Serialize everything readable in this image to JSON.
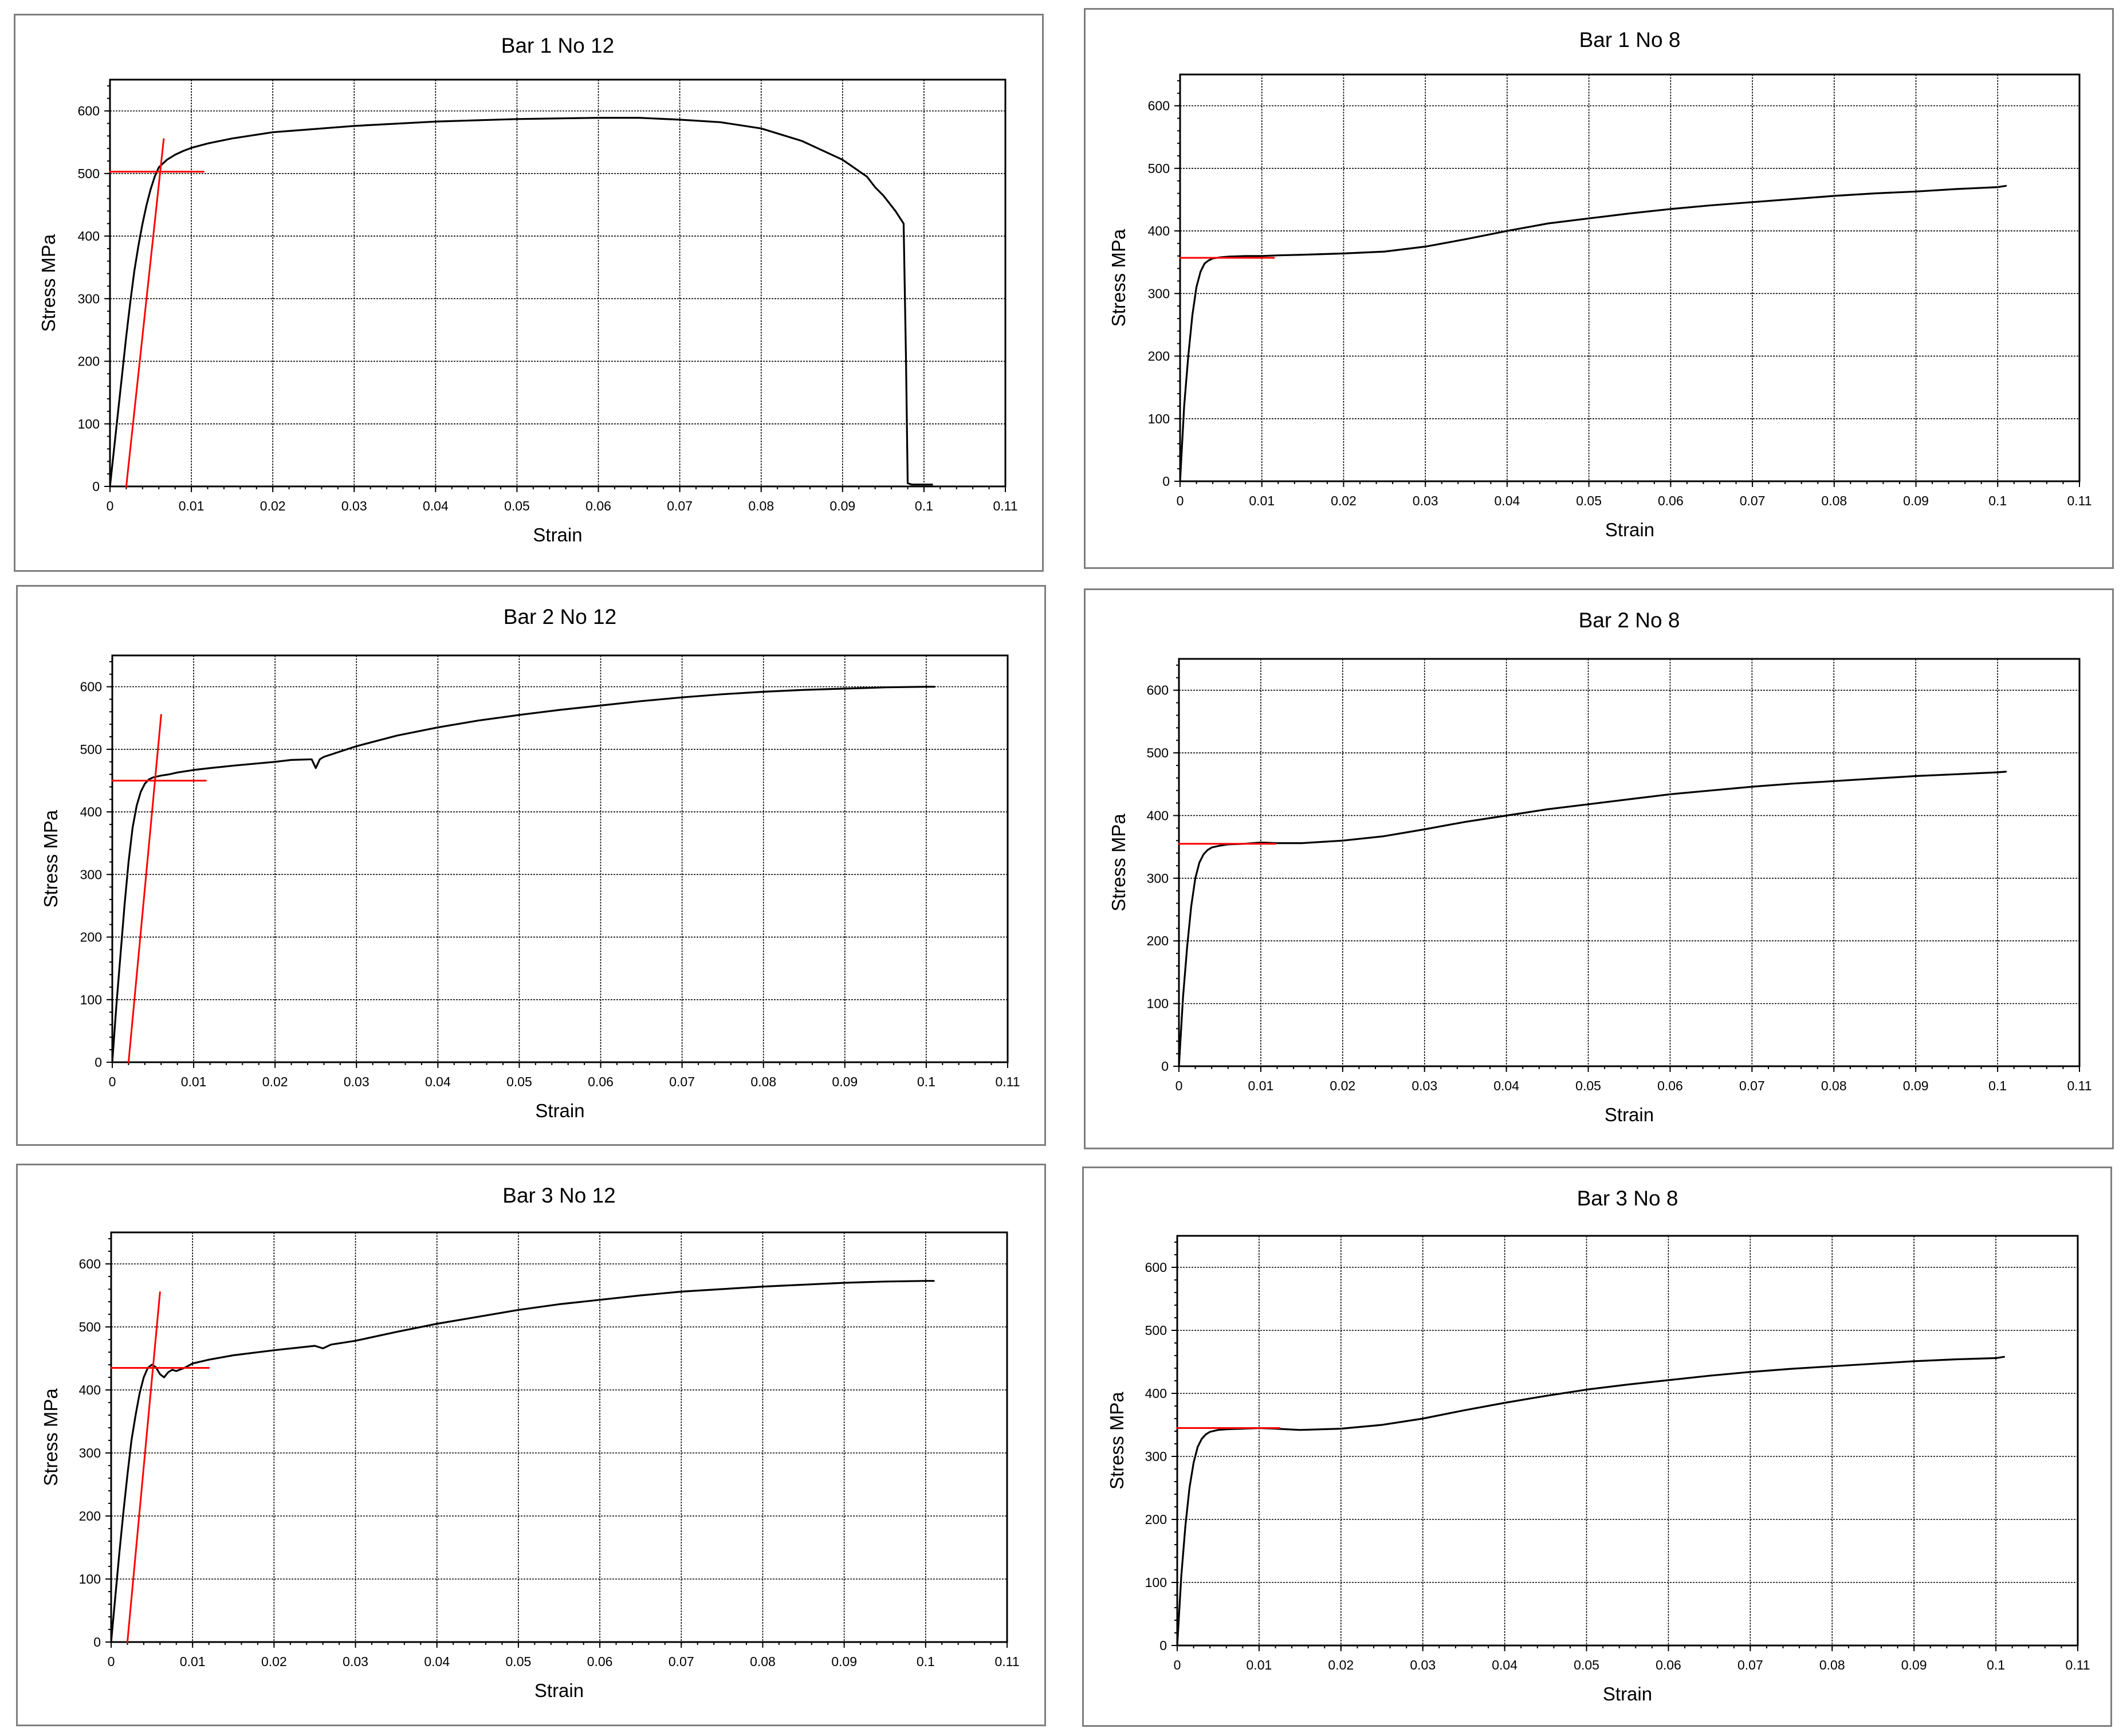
{
  "chart_data": [
    {
      "type": "line",
      "title": "Bar 1 No 12",
      "xlabel": "Strain",
      "ylabel": "Stress MPa",
      "xlim": [
        0,
        0.11
      ],
      "ylim": [
        0,
        650
      ],
      "xticks": [
        "0",
        "0.01",
        "0.02",
        "0.03",
        "0.04",
        "0.05",
        "0.06",
        "0.07",
        "0.08",
        "0.09",
        "0.1",
        "0.11"
      ],
      "yticks": [
        "0",
        "100",
        "200",
        "300",
        "400",
        "500",
        "600"
      ],
      "grid": true,
      "series": [
        {
          "color": "#000000",
          "x": [
            0,
            0.0005,
            0.001,
            0.0015,
            0.002,
            0.0025,
            0.003,
            0.0035,
            0.004,
            0.0045,
            0.005,
            0.0055,
            0.006,
            0.007,
            0.008,
            0.009,
            0.01,
            0.012,
            0.015,
            0.02,
            0.03,
            0.04,
            0.05,
            0.06,
            0.065,
            0.07,
            0.075,
            0.08,
            0.085,
            0.09,
            0.093,
            0.094,
            0.095,
            0.0965,
            0.0975,
            0.0978,
            0.098,
            0.0985,
            0.101
          ],
          "y": [
            0,
            60,
            120,
            180,
            240,
            295,
            345,
            385,
            420,
            450,
            475,
            495,
            510,
            522,
            530,
            536,
            541,
            548,
            556,
            566,
            576,
            583,
            587,
            589,
            589,
            586,
            582,
            572,
            552,
            522,
            495,
            478,
            465,
            440,
            420,
            200,
            5,
            3,
            3
          ]
        },
        {
          "color": "#ff0000",
          "x": [
            0.002,
            0.0066
          ],
          "y": [
            0,
            555
          ]
        },
        {
          "color": "#ff0000",
          "x": [
            0,
            0.0115
          ],
          "y": [
            503,
            503
          ]
        }
      ]
    },
    {
      "type": "line",
      "title": "Bar 1 No 8",
      "xlabel": "Strain",
      "ylabel": "Stress MPa",
      "xlim": [
        0,
        0.11
      ],
      "ylim": [
        0,
        650
      ],
      "xticks": [
        "0",
        "0.01",
        "0.02",
        "0.03",
        "0.04",
        "0.05",
        "0.06",
        "0.07",
        "0.08",
        "0.09",
        "0.1",
        "0.11"
      ],
      "yticks": [
        "0",
        "100",
        "200",
        "300",
        "400",
        "500",
        "600"
      ],
      "grid": true,
      "series": [
        {
          "color": "#000000",
          "x": [
            0,
            0.0005,
            0.001,
            0.0015,
            0.002,
            0.0025,
            0.003,
            0.0035,
            0.004,
            0.005,
            0.006,
            0.008,
            0.01,
            0.012,
            0.015,
            0.02,
            0.025,
            0.03,
            0.035,
            0.04,
            0.045,
            0.05,
            0.055,
            0.06,
            0.065,
            0.07,
            0.075,
            0.08,
            0.085,
            0.09,
            0.095,
            0.1,
            0.101
          ],
          "y": [
            0,
            120,
            200,
            265,
            310,
            335,
            348,
            353,
            356,
            358,
            359,
            360,
            360,
            361,
            362,
            364,
            367,
            375,
            387,
            400,
            412,
            420,
            428,
            435,
            441,
            446,
            451,
            456,
            460,
            463,
            467,
            470,
            472
          ]
        },
        {
          "color": "#ff0000",
          "x": [
            0,
            0.0115
          ],
          "y": [
            357,
            357
          ]
        }
      ]
    },
    {
      "type": "line",
      "title": "Bar 2 No 12",
      "xlabel": "Strain",
      "ylabel": "Stress MPa",
      "xlim": [
        0,
        0.11
      ],
      "ylim": [
        0,
        650
      ],
      "xticks": [
        "0",
        "0.01",
        "0.02",
        "0.03",
        "0.04",
        "0.05",
        "0.06",
        "0.07",
        "0.08",
        "0.09",
        "0.1",
        "0.11"
      ],
      "yticks": [
        "0",
        "100",
        "200",
        "300",
        "400",
        "500",
        "600"
      ],
      "grid": true,
      "series": [
        {
          "color": "#000000",
          "x": [
            0,
            0.0005,
            0.001,
            0.0015,
            0.002,
            0.0025,
            0.003,
            0.0035,
            0.004,
            0.0045,
            0.005,
            0.006,
            0.007,
            0.008,
            0.01,
            0.012,
            0.015,
            0.02,
            0.022,
            0.0245,
            0.025,
            0.0255,
            0.026,
            0.03,
            0.035,
            0.04,
            0.045,
            0.05,
            0.055,
            0.06,
            0.065,
            0.07,
            0.075,
            0.08,
            0.085,
            0.09,
            0.095,
            0.1,
            0.101
          ],
          "y": [
            0,
            90,
            170,
            250,
            320,
            375,
            410,
            432,
            445,
            452,
            455,
            458,
            460,
            463,
            467,
            470,
            474,
            480,
            483,
            484,
            470,
            484,
            488,
            505,
            522,
            535,
            546,
            555,
            563,
            570,
            577,
            583,
            588,
            592,
            595,
            597,
            599,
            600,
            600
          ]
        },
        {
          "color": "#ff0000",
          "x": [
            0.002,
            0.006
          ],
          "y": [
            0,
            555
          ]
        },
        {
          "color": "#ff0000",
          "x": [
            0,
            0.0115
          ],
          "y": [
            450,
            450
          ]
        }
      ]
    },
    {
      "type": "line",
      "title": "Bar 2 No 8",
      "xlabel": "Strain",
      "ylabel": "Stress MPa",
      "xlim": [
        0,
        0.11
      ],
      "ylim": [
        0,
        650
      ],
      "xticks": [
        "0",
        "0.01",
        "0.02",
        "0.03",
        "0.04",
        "0.05",
        "0.06",
        "0.07",
        "0.08",
        "0.09",
        "0.1",
        "0.11"
      ],
      "yticks": [
        "0",
        "100",
        "200",
        "300",
        "400",
        "500",
        "600"
      ],
      "grid": true,
      "series": [
        {
          "color": "#000000",
          "x": [
            0,
            0.0005,
            0.001,
            0.0015,
            0.002,
            0.0025,
            0.003,
            0.0035,
            0.004,
            0.005,
            0.006,
            0.008,
            0.01,
            0.012,
            0.015,
            0.02,
            0.025,
            0.03,
            0.035,
            0.04,
            0.045,
            0.05,
            0.055,
            0.06,
            0.065,
            0.07,
            0.075,
            0.08,
            0.085,
            0.09,
            0.095,
            0.1,
            0.101
          ],
          "y": [
            0,
            110,
            190,
            255,
            300,
            325,
            338,
            345,
            349,
            352,
            354,
            355,
            357,
            356,
            356,
            360,
            367,
            378,
            390,
            400,
            410,
            418,
            426,
            434,
            440,
            446,
            451,
            455,
            459,
            463,
            466,
            469,
            470
          ]
        },
        {
          "color": "#ff0000",
          "x": [
            0,
            0.0118
          ],
          "y": [
            355,
            355
          ]
        }
      ]
    },
    {
      "type": "line",
      "title": "Bar 3 No 12",
      "xlabel": "Strain",
      "ylabel": "Stress MPa",
      "xlim": [
        0,
        0.11
      ],
      "ylim": [
        0,
        650
      ],
      "xticks": [
        "0",
        "0.01",
        "0.02",
        "0.03",
        "0.04",
        "0.05",
        "0.06",
        "0.07",
        "0.08",
        "0.09",
        "0.1",
        "0.11"
      ],
      "yticks": [
        "0",
        "100",
        "200",
        "300",
        "400",
        "500",
        "600"
      ],
      "grid": true,
      "series": [
        {
          "color": "#000000",
          "x": [
            0,
            0.0005,
            0.001,
            0.0015,
            0.002,
            0.0025,
            0.003,
            0.0035,
            0.004,
            0.0045,
            0.005,
            0.0055,
            0.006,
            0.0065,
            0.007,
            0.0075,
            0.008,
            0.009,
            0.01,
            0.012,
            0.015,
            0.02,
            0.025,
            0.026,
            0.027,
            0.03,
            0.035,
            0.04,
            0.045,
            0.05,
            0.055,
            0.06,
            0.065,
            0.07,
            0.075,
            0.08,
            0.085,
            0.09,
            0.095,
            0.1,
            0.101
          ],
          "y": [
            0,
            70,
            140,
            205,
            265,
            320,
            360,
            395,
            420,
            435,
            440,
            436,
            425,
            420,
            428,
            432,
            430,
            435,
            442,
            448,
            455,
            463,
            470,
            466,
            472,
            478,
            492,
            505,
            516,
            527,
            536,
            543,
            550,
            556,
            560,
            564,
            567,
            570,
            572,
            573,
            573
          ]
        },
        {
          "color": "#ff0000",
          "x": [
            0.002,
            0.006
          ],
          "y": [
            0,
            555
          ]
        },
        {
          "color": "#ff0000",
          "x": [
            0,
            0.012
          ],
          "y": [
            435,
            435
          ]
        }
      ]
    },
    {
      "type": "line",
      "title": "Bar 3 No 8",
      "xlabel": "Strain",
      "ylabel": "Stress MPa",
      "xlim": [
        0,
        0.11
      ],
      "ylim": [
        0,
        650
      ],
      "xticks": [
        "0",
        "0.01",
        "0.02",
        "0.03",
        "0.04",
        "0.05",
        "0.06",
        "0.07",
        "0.08",
        "0.09",
        "0.1",
        "0.11"
      ],
      "yticks": [
        "0",
        "100",
        "200",
        "300",
        "400",
        "500",
        "600"
      ],
      "grid": true,
      "series": [
        {
          "color": "#000000",
          "x": [
            0,
            0.0005,
            0.001,
            0.0015,
            0.002,
            0.0025,
            0.003,
            0.0035,
            0.004,
            0.005,
            0.006,
            0.008,
            0.01,
            0.012,
            0.015,
            0.02,
            0.025,
            0.03,
            0.035,
            0.04,
            0.045,
            0.05,
            0.055,
            0.06,
            0.065,
            0.07,
            0.075,
            0.08,
            0.085,
            0.09,
            0.095,
            0.1,
            0.101
          ],
          "y": [
            0,
            110,
            190,
            250,
            290,
            315,
            328,
            335,
            339,
            342,
            343,
            344,
            345,
            344,
            342,
            344,
            350,
            360,
            373,
            385,
            396,
            406,
            414,
            421,
            428,
            434,
            439,
            443,
            447,
            451,
            454,
            456,
            458
          ]
        },
        {
          "color": "#ff0000",
          "x": [
            0,
            0.0125
          ],
          "y": [
            345,
            345
          ]
        }
      ]
    }
  ]
}
